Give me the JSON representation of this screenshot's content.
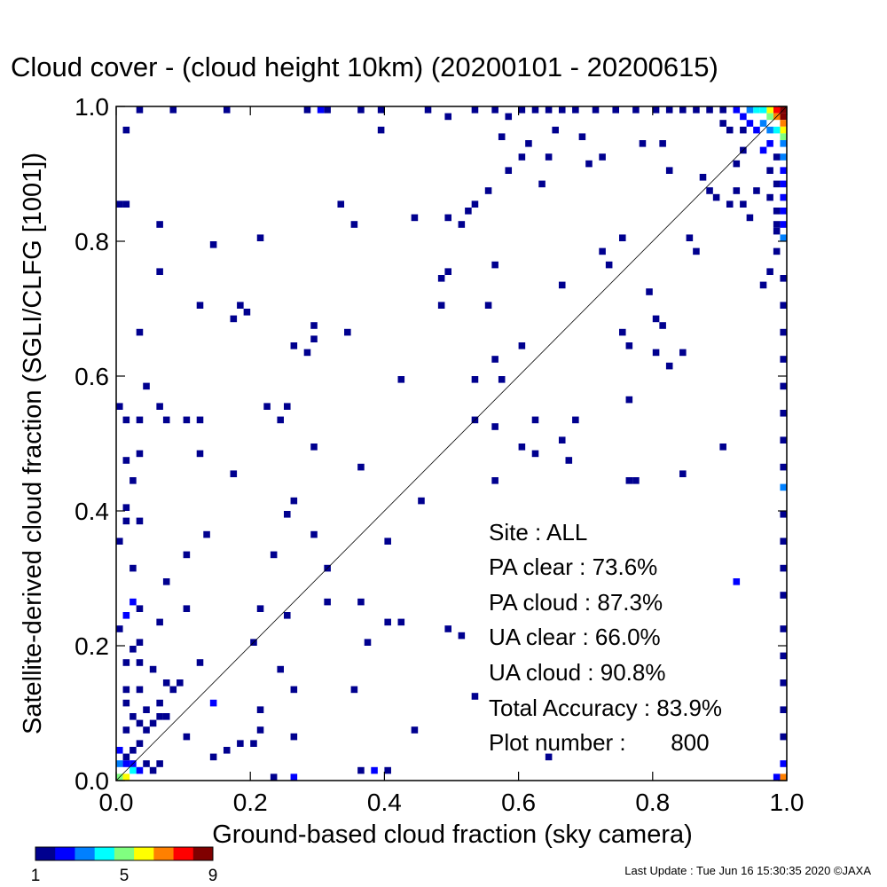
{
  "footer": "Last Update : Tue Jun 16 15:30:35 2020  ©JAXA",
  "colorbar": {
    "colors": [
      "#00008f",
      "#0000ff",
      "#0080ff",
      "#00ffff",
      "#80ff80",
      "#ffff00",
      "#ff8000",
      "#ff0000",
      "#800000"
    ],
    "tick_labels": [
      {
        "value": 1,
        "label": "1"
      },
      {
        "value": 5,
        "label": "5"
      },
      {
        "value": 9,
        "label": "9"
      }
    ]
  },
  "stats": {
    "site": "Site : ALL",
    "pa_clear": "PA clear :  73.6%",
    "pa_cloud": "PA cloud :  87.3%",
    "ua_clear": "UA clear :  66.0%",
    "ua_cloud": "UA cloud :  90.8%",
    "total_accuracy": "Total Accuracy :  83.9%",
    "plot_number": "Plot number :       800"
  },
  "chart_data": {
    "type": "heatmap",
    "title": "Cloud cover - (cloud height 10km)  (20200101 - 20200615)",
    "xlabel": "Ground-based cloud fraction (sky camera)",
    "ylabel": "Satellite-derived cloud fraction (SGLI/CLFG [1001])",
    "xlim": [
      0.0,
      1.0
    ],
    "ylim": [
      0.0,
      1.0
    ],
    "x_ticks": [
      {
        "value": 0.0,
        "label": "0.0"
      },
      {
        "value": 0.2,
        "label": "0.2"
      },
      {
        "value": 0.4,
        "label": "0.4"
      },
      {
        "value": 0.6,
        "label": "0.6"
      },
      {
        "value": 0.8,
        "label": "0.8"
      },
      {
        "value": 1.0,
        "label": "1.0"
      }
    ],
    "y_ticks": [
      {
        "value": 0.0,
        "label": "0.0"
      },
      {
        "value": 0.2,
        "label": "0.2"
      },
      {
        "value": 0.4,
        "label": "0.4"
      },
      {
        "value": 0.6,
        "label": "0.6"
      },
      {
        "value": 0.8,
        "label": "0.8"
      },
      {
        "value": 1.0,
        "label": "1.0"
      }
    ],
    "reference_line": [
      [
        0.0,
        0.0
      ],
      [
        1.0,
        1.0
      ]
    ],
    "bin_width": 0.01,
    "count_range": [
      1,
      9
    ],
    "cells": [
      [
        0.0,
        0.0,
        5
      ],
      [
        0.01,
        0.0,
        6
      ],
      [
        0.02,
        0.01,
        4
      ],
      [
        0.0,
        0.02,
        3
      ],
      [
        0.01,
        0.02,
        2
      ],
      [
        0.02,
        0.02,
        2
      ],
      [
        0.03,
        0.01,
        2
      ],
      [
        0.0,
        0.04,
        2
      ],
      [
        0.01,
        0.03,
        1
      ],
      [
        0.02,
        0.04,
        1
      ],
      [
        0.04,
        0.02,
        1
      ],
      [
        0.05,
        0.01,
        1
      ],
      [
        0.06,
        0.02,
        1
      ],
      [
        0.03,
        0.05,
        1
      ],
      [
        0.04,
        0.07,
        1
      ],
      [
        0.01,
        0.07,
        1
      ],
      [
        0.03,
        0.08,
        1
      ],
      [
        0.05,
        0.08,
        1
      ],
      [
        0.06,
        0.09,
        1
      ],
      [
        0.02,
        0.09,
        1
      ],
      [
        0.01,
        0.11,
        1
      ],
      [
        0.04,
        0.1,
        1
      ],
      [
        0.07,
        0.09,
        1
      ],
      [
        0.01,
        0.13,
        1
      ],
      [
        0.03,
        0.13,
        1
      ],
      [
        0.06,
        0.11,
        1
      ],
      [
        0.08,
        0.13,
        1
      ],
      [
        0.09,
        0.14,
        1
      ],
      [
        0.07,
        0.14,
        1
      ],
      [
        0.01,
        0.17,
        1
      ],
      [
        0.03,
        0.17,
        1
      ],
      [
        0.05,
        0.16,
        1
      ],
      [
        0.12,
        0.17,
        1
      ],
      [
        0.02,
        0.19,
        1
      ],
      [
        0.0,
        0.22,
        1
      ],
      [
        0.03,
        0.2,
        1
      ],
      [
        0.06,
        0.23,
        1
      ],
      [
        0.01,
        0.24,
        2
      ],
      [
        0.03,
        0.25,
        1
      ],
      [
        0.1,
        0.25,
        1
      ],
      [
        0.14,
        0.11,
        2
      ],
      [
        0.02,
        0.26,
        2
      ],
      [
        0.07,
        0.29,
        1
      ],
      [
        0.1,
        0.33,
        1
      ],
      [
        0.13,
        0.36,
        1
      ],
      [
        0.02,
        0.31,
        1
      ],
      [
        0.0,
        0.35,
        1
      ],
      [
        0.01,
        0.38,
        1
      ],
      [
        0.03,
        0.38,
        1
      ],
      [
        0.01,
        0.4,
        1
      ],
      [
        0.02,
        0.44,
        1
      ],
      [
        0.01,
        0.47,
        1
      ],
      [
        0.03,
        0.48,
        1
      ],
      [
        0.12,
        0.48,
        1
      ],
      [
        0.17,
        0.45,
        1
      ],
      [
        0.01,
        0.53,
        1
      ],
      [
        0.03,
        0.53,
        1
      ],
      [
        0.0,
        0.55,
        1
      ],
      [
        0.06,
        0.55,
        1
      ],
      [
        0.07,
        0.53,
        1
      ],
      [
        0.1,
        0.53,
        1
      ],
      [
        0.12,
        0.53,
        1
      ],
      [
        0.04,
        0.58,
        1
      ],
      [
        0.03,
        0.66,
        1
      ],
      [
        0.12,
        0.7,
        1
      ],
      [
        0.18,
        0.7,
        1
      ],
      [
        0.17,
        0.68,
        1
      ],
      [
        0.19,
        0.69,
        1
      ],
      [
        0.06,
        0.75,
        1
      ],
      [
        0.06,
        0.82,
        1
      ],
      [
        0.14,
        0.79,
        1
      ],
      [
        0.21,
        0.8,
        1
      ],
      [
        0.0,
        0.85,
        1
      ],
      [
        0.01,
        0.85,
        1
      ],
      [
        0.01,
        0.96,
        1
      ],
      [
        0.03,
        0.99,
        1
      ],
      [
        0.08,
        0.99,
        1
      ],
      [
        0.16,
        0.99,
        1
      ],
      [
        0.22,
        0.55,
        1
      ],
      [
        0.24,
        0.53,
        1
      ],
      [
        0.25,
        0.55,
        1
      ],
      [
        0.26,
        0.41,
        1
      ],
      [
        0.25,
        0.39,
        1
      ],
      [
        0.29,
        0.49,
        1
      ],
      [
        0.29,
        0.36,
        1
      ],
      [
        0.29,
        0.65,
        1
      ],
      [
        0.29,
        0.67,
        1
      ],
      [
        0.28,
        0.63,
        1
      ],
      [
        0.26,
        0.64,
        1
      ],
      [
        0.23,
        0.33,
        1
      ],
      [
        0.21,
        0.25,
        1
      ],
      [
        0.25,
        0.24,
        1
      ],
      [
        0.2,
        0.2,
        1
      ],
      [
        0.24,
        0.16,
        1
      ],
      [
        0.26,
        0.13,
        1
      ],
      [
        0.21,
        0.1,
        1
      ],
      [
        0.21,
        0.07,
        1
      ],
      [
        0.2,
        0.05,
        1
      ],
      [
        0.18,
        0.05,
        1
      ],
      [
        0.16,
        0.04,
        1
      ],
      [
        0.14,
        0.03,
        1
      ],
      [
        0.1,
        0.06,
        1
      ],
      [
        0.26,
        0.06,
        1
      ],
      [
        0.23,
        0.0,
        1
      ],
      [
        0.26,
        0.0,
        2
      ],
      [
        0.31,
        0.26,
        1
      ],
      [
        0.31,
        0.31,
        1
      ],
      [
        0.34,
        0.66,
        1
      ],
      [
        0.33,
        0.85,
        1
      ],
      [
        0.35,
        0.82,
        1
      ],
      [
        0.36,
        0.46,
        1
      ],
      [
        0.36,
        0.26,
        1
      ],
      [
        0.37,
        0.2,
        1
      ],
      [
        0.35,
        0.13,
        1
      ],
      [
        0.36,
        0.01,
        1
      ],
      [
        0.38,
        0.01,
        2
      ],
      [
        0.4,
        0.01,
        1
      ],
      [
        0.39,
        0.96,
        1
      ],
      [
        0.4,
        0.35,
        1
      ],
      [
        0.4,
        0.23,
        1
      ],
      [
        0.42,
        0.23,
        1
      ],
      [
        0.42,
        0.59,
        1
      ],
      [
        0.44,
        0.83,
        1
      ],
      [
        0.44,
        0.07,
        1
      ],
      [
        0.45,
        0.41,
        1
      ],
      [
        0.46,
        0.99,
        1
      ],
      [
        0.49,
        0.98,
        1
      ],
      [
        0.48,
        0.74,
        1
      ],
      [
        0.49,
        0.75,
        1
      ],
      [
        0.48,
        0.7,
        1
      ],
      [
        0.49,
        0.83,
        1
      ],
      [
        0.51,
        0.82,
        1
      ],
      [
        0.52,
        0.84,
        1
      ],
      [
        0.53,
        0.85,
        1
      ],
      [
        0.53,
        0.59,
        1
      ],
      [
        0.53,
        0.53,
        1
      ],
      [
        0.51,
        0.21,
        1
      ],
      [
        0.49,
        0.22,
        1
      ],
      [
        0.53,
        0.12,
        1
      ],
      [
        0.55,
        0.87,
        1
      ],
      [
        0.56,
        0.76,
        1
      ],
      [
        0.56,
        0.62,
        1
      ],
      [
        0.56,
        0.52,
        1
      ],
      [
        0.56,
        0.44,
        1
      ],
      [
        0.55,
        0.7,
        1
      ],
      [
        0.57,
        0.59,
        1
      ],
      [
        0.57,
        0.95,
        1
      ],
      [
        0.58,
        0.98,
        1
      ],
      [
        0.58,
        0.9,
        1
      ],
      [
        0.6,
        0.92,
        1
      ],
      [
        0.61,
        0.94,
        1
      ],
      [
        0.6,
        0.64,
        1
      ],
      [
        0.6,
        0.49,
        1
      ],
      [
        0.62,
        0.48,
        1
      ],
      [
        0.62,
        0.53,
        1
      ],
      [
        0.63,
        0.88,
        1
      ],
      [
        0.64,
        0.92,
        1
      ],
      [
        0.64,
        0.03,
        1
      ],
      [
        0.65,
        0.96,
        1
      ],
      [
        0.66,
        0.73,
        1
      ],
      [
        0.66,
        0.5,
        1
      ],
      [
        0.67,
        0.47,
        1
      ],
      [
        0.68,
        0.53,
        1
      ],
      [
        0.69,
        0.95,
        1
      ],
      [
        0.7,
        0.91,
        1
      ],
      [
        0.72,
        0.92,
        1
      ],
      [
        0.72,
        0.78,
        1
      ],
      [
        0.73,
        0.76,
        1
      ],
      [
        0.75,
        0.8,
        1
      ],
      [
        0.75,
        0.66,
        1
      ],
      [
        0.76,
        0.64,
        1
      ],
      [
        0.76,
        0.56,
        1
      ],
      [
        0.76,
        0.44,
        1
      ],
      [
        0.77,
        0.44,
        1
      ],
      [
        0.78,
        0.94,
        1
      ],
      [
        0.79,
        0.72,
        1
      ],
      [
        0.8,
        0.63,
        1
      ],
      [
        0.8,
        0.68,
        1
      ],
      [
        0.81,
        0.67,
        1
      ],
      [
        0.82,
        0.61,
        1
      ],
      [
        0.81,
        0.94,
        1
      ],
      [
        0.82,
        0.9,
        1
      ],
      [
        0.84,
        0.45,
        1
      ],
      [
        0.84,
        0.63,
        1
      ],
      [
        0.85,
        0.8,
        1
      ],
      [
        0.86,
        0.78,
        1
      ],
      [
        0.87,
        0.89,
        1
      ],
      [
        0.88,
        0.87,
        1
      ],
      [
        0.89,
        0.86,
        1
      ],
      [
        0.9,
        0.49,
        1
      ],
      [
        0.91,
        0.85,
        1
      ],
      [
        0.92,
        0.87,
        1
      ],
      [
        0.93,
        0.85,
        1
      ],
      [
        0.92,
        0.29,
        2
      ],
      [
        0.94,
        0.83,
        1
      ],
      [
        0.95,
        0.87,
        1
      ],
      [
        0.96,
        0.73,
        1
      ],
      [
        0.97,
        0.75,
        1
      ],
      [
        0.98,
        0.81,
        1
      ],
      [
        0.98,
        0.78,
        1
      ],
      [
        0.99,
        0.74,
        1
      ],
      [
        0.99,
        0.7,
        1
      ],
      [
        0.99,
        0.66,
        1
      ],
      [
        0.99,
        0.62,
        1
      ],
      [
        0.99,
        0.58,
        1
      ],
      [
        0.99,
        0.54,
        1
      ],
      [
        0.99,
        0.5,
        1
      ],
      [
        0.99,
        0.46,
        1
      ],
      [
        0.99,
        0.43,
        3
      ],
      [
        0.99,
        0.39,
        1
      ],
      [
        0.99,
        0.35,
        1
      ],
      [
        0.99,
        0.31,
        1
      ],
      [
        0.99,
        0.27,
        1
      ],
      [
        0.99,
        0.22,
        1
      ],
      [
        0.99,
        0.18,
        1
      ],
      [
        0.99,
        0.14,
        1
      ],
      [
        0.99,
        0.1,
        1
      ],
      [
        0.99,
        0.06,
        1
      ],
      [
        0.99,
        0.02,
        2
      ],
      [
        0.99,
        0.0,
        7
      ],
      [
        0.98,
        0.0,
        2
      ],
      [
        0.99,
        0.99,
        9
      ],
      [
        0.98,
        0.99,
        8
      ],
      [
        0.99,
        0.98,
        9
      ],
      [
        0.97,
        0.99,
        6
      ],
      [
        0.98,
        0.98,
        7
      ],
      [
        0.99,
        0.97,
        7
      ],
      [
        0.99,
        0.96,
        6
      ],
      [
        0.96,
        0.99,
        4
      ],
      [
        0.97,
        0.98,
        5
      ],
      [
        0.99,
        0.95,
        5
      ],
      [
        0.95,
        0.99,
        4
      ],
      [
        0.98,
        0.96,
        4
      ],
      [
        0.99,
        0.94,
        3
      ],
      [
        0.94,
        0.99,
        3
      ],
      [
        0.96,
        0.97,
        3
      ],
      [
        0.97,
        0.96,
        3
      ],
      [
        0.93,
        0.98,
        2
      ],
      [
        0.99,
        0.92,
        3
      ],
      [
        0.99,
        0.9,
        2
      ],
      [
        0.99,
        0.88,
        2
      ],
      [
        0.99,
        0.86,
        2
      ],
      [
        0.99,
        0.84,
        2
      ],
      [
        0.99,
        0.82,
        2
      ],
      [
        0.98,
        0.92,
        1
      ],
      [
        0.97,
        0.9,
        1
      ],
      [
        0.98,
        0.88,
        1
      ],
      [
        0.97,
        0.86,
        1
      ],
      [
        0.98,
        0.84,
        1
      ],
      [
        0.98,
        0.82,
        1
      ],
      [
        0.92,
        0.99,
        2
      ],
      [
        0.9,
        0.99,
        1
      ],
      [
        0.88,
        0.99,
        1
      ],
      [
        0.86,
        0.99,
        1
      ],
      [
        0.84,
        0.99,
        1
      ],
      [
        0.82,
        0.99,
        1
      ],
      [
        0.8,
        0.99,
        1
      ],
      [
        0.77,
        0.99,
        1
      ],
      [
        0.74,
        0.99,
        1
      ],
      [
        0.71,
        0.99,
        1
      ],
      [
        0.68,
        0.99,
        1
      ],
      [
        0.66,
        0.99,
        1
      ],
      [
        0.64,
        0.99,
        1
      ],
      [
        0.62,
        0.99,
        1
      ],
      [
        0.6,
        0.99,
        1
      ],
      [
        0.56,
        0.99,
        1
      ],
      [
        0.53,
        0.99,
        1
      ],
      [
        0.39,
        0.99,
        1
      ],
      [
        0.36,
        0.99,
        1
      ],
      [
        0.3,
        0.99,
        2
      ],
      [
        0.28,
        0.99,
        1
      ],
      [
        0.31,
        0.99,
        1
      ],
      [
        0.95,
        0.96,
        2
      ],
      [
        0.94,
        0.97,
        2
      ],
      [
        0.91,
        0.96,
        1
      ],
      [
        0.93,
        0.96,
        1
      ],
      [
        0.9,
        0.97,
        1
      ],
      [
        0.96,
        0.93,
        2
      ],
      [
        0.97,
        0.94,
        2
      ],
      [
        0.93,
        0.93,
        1
      ],
      [
        0.92,
        0.91,
        1
      ],
      [
        0.99,
        0.8,
        3
      ]
    ]
  }
}
